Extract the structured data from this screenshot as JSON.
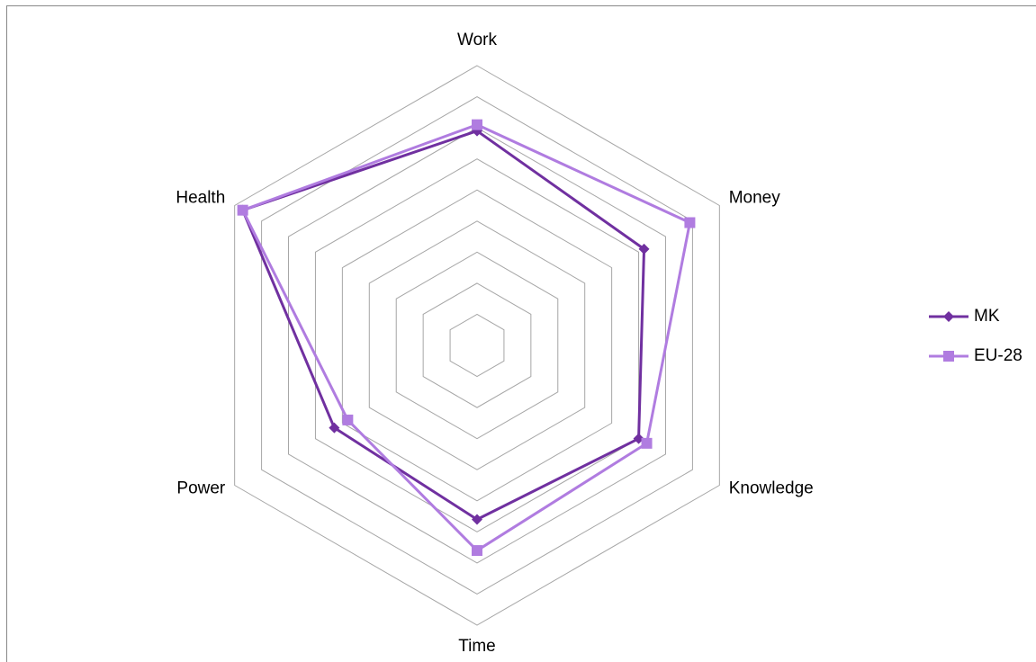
{
  "chart_data": {
    "type": "radar",
    "categories": [
      "Work",
      "Money",
      "Knowledge",
      "Time",
      "Power",
      "Health"
    ],
    "series": [
      {
        "name": "MK",
        "color": "#7030a0",
        "marker": "diamond",
        "values": [
          69,
          62,
          60,
          56,
          53,
          87
        ]
      },
      {
        "name": "EU-28",
        "color": "#b07ce0",
        "marker": "square",
        "values": [
          71,
          79,
          63,
          66,
          48,
          87
        ]
      }
    ],
    "rlim": [
      0,
      90
    ],
    "rticks": [
      10,
      20,
      30,
      40,
      50,
      60,
      70,
      80,
      90
    ],
    "grid": true,
    "legend": "right"
  }
}
